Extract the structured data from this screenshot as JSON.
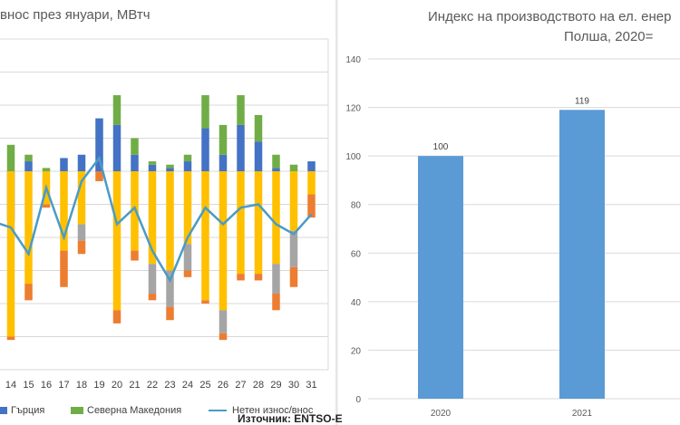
{
  "left_title": "внос през януари, МВтч",
  "right_title_line1": "Индекс на производството на ел. енер",
  "right_title_line2": "Полша, 2020=",
  "source": "Източник: ENTSO-E",
  "legend": {
    "greece": "Гърция",
    "north_macedonia": "Северна Македония",
    "net_line": "Нетен износ/внос"
  },
  "colors": {
    "greece": "#4472c4",
    "north_macedonia": "#70ad47",
    "yellow": "#ffc000",
    "orange": "#ed7d31",
    "gray": "#a5a5a5",
    "net_line": "#4a9bc7",
    "right_bar": "#5b9bd5"
  },
  "chart_data": [
    {
      "type": "bar",
      "stacked": true,
      "categories": [
        "14",
        "15",
        "16",
        "17",
        "18",
        "19",
        "20",
        "21",
        "22",
        "23",
        "24",
        "25",
        "26",
        "27",
        "28",
        "29",
        "30",
        "31"
      ],
      "series": [
        {
          "name": "Гърция",
          "pos": [
            -15,
            3,
            0,
            4,
            5,
            16,
            14,
            5,
            2,
            1,
            3,
            13,
            5,
            14,
            9,
            1,
            0,
            3
          ]
        },
        {
          "name": "Северна Македония",
          "pos": [
            8,
            2,
            1,
            0,
            0,
            0,
            9,
            5,
            1,
            1,
            2,
            10,
            9,
            9,
            8,
            4,
            2,
            0
          ]
        },
        {
          "name": "",
          "pos": [
            0,
            0,
            0,
            0,
            0,
            0,
            0,
            0,
            0,
            0,
            0,
            0,
            0,
            0,
            0,
            0,
            0,
            0
          ],
          "neg": [
            -50,
            -34,
            -10,
            -24,
            -16,
            0,
            -42,
            -24,
            -28,
            -30,
            -22,
            -39,
            -42,
            -31,
            -31,
            -28,
            -18,
            -7
          ]
        },
        {
          "name": "",
          "pos": [
            0,
            0,
            0,
            0,
            0,
            0,
            0,
            0,
            0,
            0,
            0,
            0,
            0,
            0,
            0,
            0,
            0,
            0
          ],
          "neg": [
            0,
            0,
            0,
            0,
            -5,
            0,
            0,
            0,
            -9,
            -11,
            -8,
            0,
            -7,
            0,
            0,
            -9,
            -11,
            0
          ]
        },
        {
          "name": "",
          "pos": [
            0,
            0,
            0,
            0,
            0,
            0,
            0,
            0,
            0,
            0,
            0,
            0,
            0,
            0,
            0,
            0,
            0,
            0
          ],
          "neg": [
            -1,
            -5,
            -1,
            -11,
            -4,
            -3,
            -4,
            -3,
            -2,
            -4,
            -2,
            -1,
            -2,
            -2,
            -2,
            -5,
            -6,
            -7
          ]
        }
      ],
      "line": {
        "name": "Нетен износ/внос",
        "values": [
          -17,
          -25,
          -5,
          -20,
          -3,
          4,
          -16,
          -11,
          -24,
          -33,
          -20,
          -11,
          -16,
          -11,
          -10,
          -16,
          -19,
          -13
        ]
      },
      "ylim": [
        -60,
        40
      ],
      "grid": true
    },
    {
      "type": "bar",
      "categories": [
        "2020",
        "2021"
      ],
      "values": [
        100,
        119
      ],
      "data_labels": [
        "100",
        "119"
      ],
      "y_ticks": [
        0,
        20,
        40,
        60,
        80,
        100,
        120,
        140
      ],
      "ylim": [
        0,
        140
      ],
      "grid": true
    }
  ]
}
